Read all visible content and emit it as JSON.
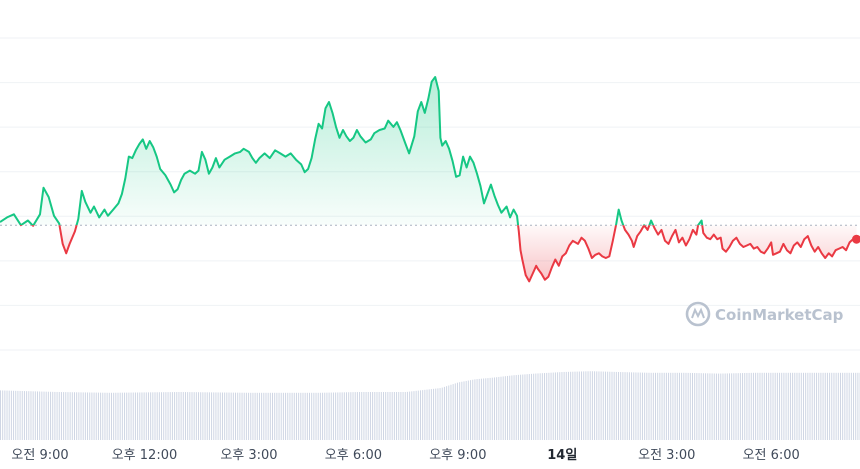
{
  "chart_data": {
    "type": "line",
    "xlabel": "",
    "ylabel": "",
    "x_tick_labels": [
      {
        "label": "오전 9:00",
        "t": 9.0,
        "bold": false
      },
      {
        "label": "오후 12:00",
        "t": 12.0,
        "bold": false
      },
      {
        "label": "오후 3:00",
        "t": 15.0,
        "bold": false
      },
      {
        "label": "오후 6:00",
        "t": 18.0,
        "bold": false
      },
      {
        "label": "오후 9:00",
        "t": 21.0,
        "bold": false
      },
      {
        "label": "14일",
        "t": 24.0,
        "bold": true
      },
      {
        "label": "오전 3:00",
        "t": 27.0,
        "bold": false
      },
      {
        "label": "오전 6:00",
        "t": 30.0,
        "bold": false
      }
    ],
    "x_domain_hours": [
      7.85,
      32.55
    ],
    "y_domain": [
      0,
      100
    ],
    "grid": "horizontal",
    "baseline_value": 40.0,
    "colors": {
      "above": "#16c784",
      "below": "#ea3943",
      "baseline": "#aab2c0",
      "grid": "#eff2f5",
      "volume": "#cfd6e4"
    },
    "price_series": [
      [
        7.85,
        41.0
      ],
      [
        8.05,
        42.5
      ],
      [
        8.25,
        43.5
      ],
      [
        8.45,
        40.0
      ],
      [
        8.65,
        41.5
      ],
      [
        8.8,
        39.8
      ],
      [
        9.0,
        43.5
      ],
      [
        9.1,
        52.0
      ],
      [
        9.25,
        49.0
      ],
      [
        9.4,
        43.0
      ],
      [
        9.55,
        40.5
      ],
      [
        9.65,
        34.0
      ],
      [
        9.75,
        31.0
      ],
      [
        9.85,
        34.0
      ],
      [
        10.0,
        38.0
      ],
      [
        10.1,
        42.0
      ],
      [
        10.2,
        51.0
      ],
      [
        10.3,
        47.5
      ],
      [
        10.45,
        44.0
      ],
      [
        10.55,
        46.0
      ],
      [
        10.7,
        42.5
      ],
      [
        10.85,
        45.0
      ],
      [
        10.95,
        43.0
      ],
      [
        11.1,
        45.0
      ],
      [
        11.25,
        47.0
      ],
      [
        11.35,
        50.0
      ],
      [
        11.45,
        55.0
      ],
      [
        11.55,
        62.0
      ],
      [
        11.65,
        61.5
      ],
      [
        11.75,
        64.0
      ],
      [
        11.85,
        66.0
      ],
      [
        11.95,
        67.5
      ],
      [
        12.05,
        64.5
      ],
      [
        12.15,
        67.0
      ],
      [
        12.25,
        65.0
      ],
      [
        12.35,
        62.0
      ],
      [
        12.45,
        58.0
      ],
      [
        12.6,
        56.0
      ],
      [
        12.75,
        53.0
      ],
      [
        12.85,
        50.5
      ],
      [
        12.95,
        51.5
      ],
      [
        13.05,
        54.5
      ],
      [
        13.15,
        56.5
      ],
      [
        13.3,
        57.5
      ],
      [
        13.45,
        56.5
      ],
      [
        13.55,
        57.5
      ],
      [
        13.65,
        63.5
      ],
      [
        13.75,
        61.0
      ],
      [
        13.85,
        56.5
      ],
      [
        13.95,
        58.5
      ],
      [
        14.05,
        61.5
      ],
      [
        14.15,
        58.5
      ],
      [
        14.3,
        61.0
      ],
      [
        14.45,
        62.0
      ],
      [
        14.6,
        63.0
      ],
      [
        14.75,
        63.5
      ],
      [
        14.85,
        64.5
      ],
      [
        15.0,
        63.5
      ],
      [
        15.1,
        61.5
      ],
      [
        15.2,
        60.0
      ],
      [
        15.3,
        61.5
      ],
      [
        15.45,
        63.0
      ],
      [
        15.6,
        61.5
      ],
      [
        15.75,
        64.0
      ],
      [
        15.9,
        63.0
      ],
      [
        16.05,
        62.0
      ],
      [
        16.2,
        63.0
      ],
      [
        16.35,
        61.0
      ],
      [
        16.5,
        59.5
      ],
      [
        16.6,
        57.0
      ],
      [
        16.7,
        58.0
      ],
      [
        16.8,
        61.5
      ],
      [
        16.9,
        67.5
      ],
      [
        17.0,
        72.5
      ],
      [
        17.1,
        71.0
      ],
      [
        17.2,
        77.5
      ],
      [
        17.3,
        79.5
      ],
      [
        17.4,
        76.0
      ],
      [
        17.5,
        71.5
      ],
      [
        17.6,
        68.0
      ],
      [
        17.7,
        70.5
      ],
      [
        17.8,
        68.5
      ],
      [
        17.9,
        67.0
      ],
      [
        18.0,
        68.0
      ],
      [
        18.1,
        70.5
      ],
      [
        18.2,
        68.5
      ],
      [
        18.35,
        66.5
      ],
      [
        18.5,
        67.5
      ],
      [
        18.6,
        69.5
      ],
      [
        18.75,
        70.5
      ],
      [
        18.9,
        71.0
      ],
      [
        19.0,
        73.5
      ],
      [
        19.15,
        71.5
      ],
      [
        19.25,
        73.0
      ],
      [
        19.35,
        70.5
      ],
      [
        19.5,
        66.0
      ],
      [
        19.6,
        63.0
      ],
      [
        19.75,
        68.5
      ],
      [
        19.85,
        76.5
      ],
      [
        19.95,
        79.5
      ],
      [
        20.05,
        76.0
      ],
      [
        20.15,
        80.5
      ],
      [
        20.25,
        86.0
      ],
      [
        20.35,
        87.5
      ],
      [
        20.45,
        83.0
      ],
      [
        20.5,
        68.0
      ],
      [
        20.55,
        65.5
      ],
      [
        20.65,
        67.0
      ],
      [
        20.75,
        64.5
      ],
      [
        20.85,
        60.5
      ],
      [
        20.95,
        55.5
      ],
      [
        21.05,
        56.0
      ],
      [
        21.15,
        62.0
      ],
      [
        21.25,
        58.5
      ],
      [
        21.35,
        62.0
      ],
      [
        21.45,
        60.0
      ],
      [
        21.55,
        56.5
      ],
      [
        21.65,
        52.5
      ],
      [
        21.75,
        47.0
      ],
      [
        21.85,
        50.0
      ],
      [
        21.95,
        53.0
      ],
      [
        22.05,
        49.5
      ],
      [
        22.15,
        46.5
      ],
      [
        22.25,
        44.0
      ],
      [
        22.4,
        46.0
      ],
      [
        22.5,
        42.5
      ],
      [
        22.6,
        45.0
      ],
      [
        22.7,
        43.0
      ],
      [
        22.75,
        38.0
      ],
      [
        22.8,
        32.0
      ],
      [
        22.85,
        29.0
      ],
      [
        22.95,
        24.0
      ],
      [
        23.05,
        22.0
      ],
      [
        23.15,
        24.5
      ],
      [
        23.25,
        27.0
      ],
      [
        23.3,
        26.0
      ],
      [
        23.4,
        24.5
      ],
      [
        23.5,
        22.5
      ],
      [
        23.6,
        23.5
      ],
      [
        23.7,
        26.5
      ],
      [
        23.8,
        29.0
      ],
      [
        23.9,
        27.0
      ],
      [
        24.0,
        30.0
      ],
      [
        24.1,
        31.0
      ],
      [
        24.2,
        33.5
      ],
      [
        24.3,
        35.0
      ],
      [
        24.45,
        34.0
      ],
      [
        24.55,
        36.0
      ],
      [
        24.65,
        35.0
      ],
      [
        24.75,
        32.5
      ],
      [
        24.85,
        29.5
      ],
      [
        24.95,
        30.5
      ],
      [
        25.05,
        31.0
      ],
      [
        25.15,
        30.0
      ],
      [
        25.25,
        29.5
      ],
      [
        25.35,
        30.0
      ],
      [
        25.45,
        35.0
      ],
      [
        25.55,
        40.5
      ],
      [
        25.62,
        45.0
      ],
      [
        25.7,
        41.5
      ],
      [
        25.8,
        38.5
      ],
      [
        25.9,
        37.0
      ],
      [
        26.0,
        35.0
      ],
      [
        26.05,
        33.0
      ],
      [
        26.15,
        36.5
      ],
      [
        26.25,
        38.0
      ],
      [
        26.35,
        40.0
      ],
      [
        26.45,
        38.5
      ],
      [
        26.55,
        41.5
      ],
      [
        26.65,
        39.0
      ],
      [
        26.75,
        37.0
      ],
      [
        26.85,
        38.5
      ],
      [
        26.95,
        35.0
      ],
      [
        27.05,
        34.0
      ],
      [
        27.15,
        36.5
      ],
      [
        27.25,
        38.5
      ],
      [
        27.35,
        34.5
      ],
      [
        27.45,
        36.0
      ],
      [
        27.55,
        33.5
      ],
      [
        27.65,
        35.5
      ],
      [
        27.75,
        38.5
      ],
      [
        27.85,
        37.0
      ],
      [
        27.9,
        40.0
      ],
      [
        28.0,
        41.5
      ],
      [
        28.05,
        37.5
      ],
      [
        28.15,
        36.0
      ],
      [
        28.25,
        35.5
      ],
      [
        28.35,
        37.0
      ],
      [
        28.45,
        35.5
      ],
      [
        28.55,
        36.0
      ],
      [
        28.6,
        32.5
      ],
      [
        28.7,
        31.5
      ],
      [
        28.8,
        33.0
      ],
      [
        28.9,
        35.0
      ],
      [
        29.0,
        36.0
      ],
      [
        29.1,
        34.0
      ],
      [
        29.2,
        33.0
      ],
      [
        29.3,
        33.5
      ],
      [
        29.4,
        34.0
      ],
      [
        29.5,
        32.5
      ],
      [
        29.6,
        33.0
      ],
      [
        29.7,
        31.5
      ],
      [
        29.8,
        31.0
      ],
      [
        29.9,
        32.5
      ],
      [
        30.0,
        34.5
      ],
      [
        30.05,
        30.5
      ],
      [
        30.15,
        31.0
      ],
      [
        30.25,
        31.5
      ],
      [
        30.35,
        34.0
      ],
      [
        30.45,
        32.0
      ],
      [
        30.55,
        31.0
      ],
      [
        30.65,
        33.5
      ],
      [
        30.75,
        34.5
      ],
      [
        30.85,
        33.0
      ],
      [
        30.95,
        35.5
      ],
      [
        31.05,
        36.5
      ],
      [
        31.15,
        33.5
      ],
      [
        31.25,
        31.5
      ],
      [
        31.35,
        33.0
      ],
      [
        31.45,
        31.0
      ],
      [
        31.55,
        29.5
      ],
      [
        31.65,
        31.0
      ],
      [
        31.75,
        30.0
      ],
      [
        31.85,
        32.0
      ],
      [
        31.95,
        32.5
      ],
      [
        32.05,
        33.0
      ],
      [
        32.15,
        32.0
      ],
      [
        32.25,
        34.5
      ],
      [
        32.35,
        35.5
      ],
      [
        32.45,
        35.5
      ]
    ],
    "volume_levels": [
      [
        7.85,
        0.62
      ],
      [
        9.5,
        0.6
      ],
      [
        11.0,
        0.59
      ],
      [
        13.0,
        0.6
      ],
      [
        15.0,
        0.59
      ],
      [
        17.0,
        0.59
      ],
      [
        18.2,
        0.6
      ],
      [
        19.5,
        0.6
      ],
      [
        20.5,
        0.65
      ],
      [
        21.0,
        0.72
      ],
      [
        21.5,
        0.76
      ],
      [
        22.0,
        0.78
      ],
      [
        22.6,
        0.81
      ],
      [
        23.2,
        0.83
      ],
      [
        24.0,
        0.85
      ],
      [
        24.8,
        0.86
      ],
      [
        25.6,
        0.85
      ],
      [
        26.5,
        0.84
      ],
      [
        27.5,
        0.84
      ],
      [
        28.5,
        0.83
      ],
      [
        29.5,
        0.84
      ],
      [
        30.5,
        0.84
      ],
      [
        31.5,
        0.84
      ],
      [
        32.55,
        0.84
      ]
    ]
  },
  "watermark": {
    "text": "CoinMarketCap",
    "icon": "coinmarketcap-logo-icon"
  }
}
